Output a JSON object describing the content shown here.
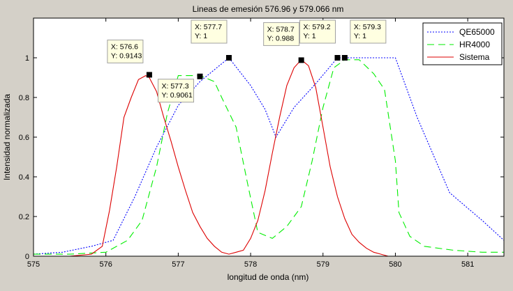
{
  "chart_data": {
    "type": "line",
    "title": "Lineas de emesión 576.96 y 579.066 nm",
    "xlabel": "longitud de onda (nm)",
    "ylabel": "Intensidad normalizada",
    "xlim": [
      575,
      581.5
    ],
    "ylim": [
      0,
      1.2
    ],
    "xticks": [
      575,
      576,
      577,
      578,
      579,
      580,
      581
    ],
    "yticks": [
      0,
      0.2,
      0.4,
      0.6,
      0.8,
      1
    ],
    "ytick_labels": [
      "0",
      "0.2",
      "0.4",
      "0.6",
      "0.8",
      "1"
    ],
    "grid": false,
    "legend_position": "top-right",
    "series": [
      {
        "name": "QE65000",
        "color": "#0000ff",
        "style": "dotted",
        "x": [
          575,
          575.4,
          575.8,
          576.1,
          576.4,
          576.7,
          577.0,
          577.3,
          577.7,
          578.0,
          578.2,
          578.35,
          578.6,
          578.9,
          579.2,
          579.3,
          579.7,
          580.0,
          580.3,
          580.75,
          581.2,
          581.5
        ],
        "y": [
          0.01,
          0.02,
          0.05,
          0.08,
          0.3,
          0.55,
          0.76,
          0.88,
          1.0,
          0.86,
          0.74,
          0.6,
          0.75,
          0.87,
          1.0,
          1.0,
          1.0,
          1.0,
          0.7,
          0.32,
          0.18,
          0.08
        ]
      },
      {
        "name": "HR4000",
        "color": "#00ee00",
        "style": "dashed",
        "x": [
          575,
          575.5,
          576.0,
          576.3,
          576.5,
          576.7,
          576.85,
          577.0,
          577.3,
          577.5,
          577.6,
          577.8,
          577.95,
          578.1,
          578.3,
          578.5,
          578.7,
          578.85,
          579.0,
          579.15,
          579.3,
          579.5,
          579.7,
          579.85,
          580.0,
          580.05,
          580.2,
          580.4,
          580.8,
          581.2,
          581.5
        ],
        "y": [
          0.01,
          0.01,
          0.02,
          0.08,
          0.18,
          0.45,
          0.72,
          0.91,
          0.91,
          0.88,
          0.8,
          0.65,
          0.38,
          0.12,
          0.09,
          0.15,
          0.25,
          0.48,
          0.75,
          0.95,
          0.99,
          0.99,
          0.92,
          0.84,
          0.48,
          0.22,
          0.1,
          0.05,
          0.03,
          0.02,
          0.02
        ]
      },
      {
        "name": "Sistema",
        "color": "#dd0000",
        "style": "solid",
        "x": [
          575,
          575.5,
          575.8,
          575.95,
          576.05,
          576.15,
          576.25,
          576.35,
          576.45,
          576.55,
          576.6,
          576.7,
          576.8,
          576.9,
          577.0,
          577.1,
          577.2,
          577.3,
          577.4,
          577.5,
          577.6,
          577.7,
          577.8,
          577.9,
          578.0,
          578.1,
          578.2,
          578.3,
          578.4,
          578.5,
          578.6,
          578.7,
          578.8,
          578.9,
          579.0,
          579.1,
          579.2,
          579.3,
          579.4,
          579.5,
          579.6,
          579.7,
          579.8,
          579.9,
          580.0,
          580.3,
          580.8,
          581.2,
          581.5
        ],
        "y": [
          0.0,
          0.0,
          0.01,
          0.05,
          0.23,
          0.45,
          0.7,
          0.8,
          0.89,
          0.91,
          0.9,
          0.83,
          0.7,
          0.58,
          0.45,
          0.33,
          0.22,
          0.15,
          0.09,
          0.05,
          0.02,
          0.01,
          0.02,
          0.03,
          0.09,
          0.18,
          0.33,
          0.52,
          0.7,
          0.86,
          0.95,
          0.99,
          0.96,
          0.85,
          0.65,
          0.45,
          0.3,
          0.19,
          0.11,
          0.07,
          0.04,
          0.02,
          0.01,
          0.0,
          0.0,
          0.0,
          0.0,
          0.0,
          0.0
        ]
      }
    ],
    "annotations": [
      {
        "x": 576.6,
        "y": 0.9143,
        "lines": [
          "X: 576.6",
          "Y: 0.9143"
        ]
      },
      {
        "x": 577.3,
        "y": 0.9061,
        "lines": [
          "X: 577.3",
          "Y: 0.9061"
        ]
      },
      {
        "x": 577.7,
        "y": 1,
        "lines": [
          "X: 577.7",
          "Y: 1"
        ]
      },
      {
        "x": 578.7,
        "y": 0.988,
        "lines": [
          "X: 578.7",
          "Y: 0.988"
        ]
      },
      {
        "x": 579.2,
        "y": 1,
        "lines": [
          "X: 579.2",
          "Y: 1"
        ]
      },
      {
        "x": 579.3,
        "y": 1,
        "lines": [
          "X: 579.3",
          "Y: 1"
        ]
      }
    ]
  }
}
